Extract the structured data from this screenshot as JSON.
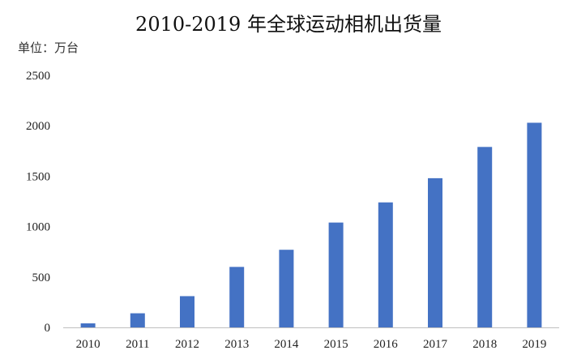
{
  "chart_data": {
    "type": "bar",
    "title": "2010-2019 年全球运动相机出货量",
    "unit_label": "单位：万台",
    "xlabel": "",
    "ylabel": "",
    "categories": [
      "2010",
      "2011",
      "2012",
      "2013",
      "2014",
      "2015",
      "2016",
      "2017",
      "2018",
      "2019"
    ],
    "values": [
      40,
      140,
      310,
      600,
      770,
      1040,
      1240,
      1480,
      1790,
      2030
    ],
    "ylim": [
      0,
      2500
    ],
    "yticks": [
      0,
      500,
      1000,
      1500,
      2000,
      2500
    ],
    "grid": false,
    "legend": "none",
    "bar_color": "#4472C4"
  }
}
